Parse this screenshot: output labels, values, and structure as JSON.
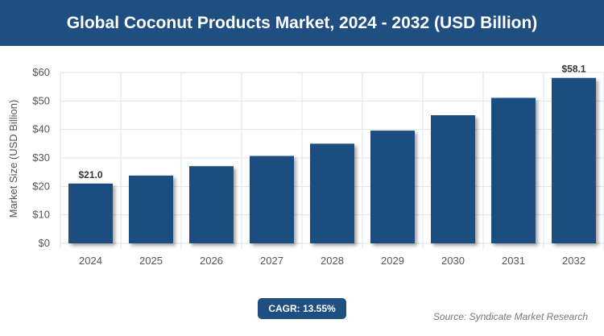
{
  "header": {
    "title": "Global Coconut Products Market, 2024 - 2032 (USD Billion)"
  },
  "badge": {
    "label": "CAGR: 13.55%"
  },
  "footer": {
    "source": "Source: Syndicate Market Research"
  },
  "colors": {
    "header_bg": "#1f4e80",
    "bar": "#1f4e80",
    "grid": "#e2e2e2",
    "axis_text": "#555555"
  },
  "chart_data": {
    "type": "bar",
    "categories": [
      "2024",
      "2025",
      "2026",
      "2027",
      "2028",
      "2029",
      "2030",
      "2031",
      "2032"
    ],
    "values": [
      21.0,
      23.8,
      27.1,
      30.7,
      35.0,
      39.6,
      45.0,
      51.1,
      58.1
    ],
    "data_labels": {
      "2024": "$21.0",
      "2032": "$58.1"
    },
    "title": "Global Coconut Products Market, 2024 - 2032 (USD Billion)",
    "xlabel": "",
    "ylabel": "Market Size (USD Billion)",
    "ylim": [
      0,
      60
    ],
    "yticks": [
      0,
      10,
      20,
      30,
      40,
      50,
      60
    ],
    "ytick_labels": [
      "$0",
      "$10",
      "$20",
      "$30",
      "$40",
      "$50",
      "$60"
    ],
    "grid": true,
    "legend": "none"
  }
}
